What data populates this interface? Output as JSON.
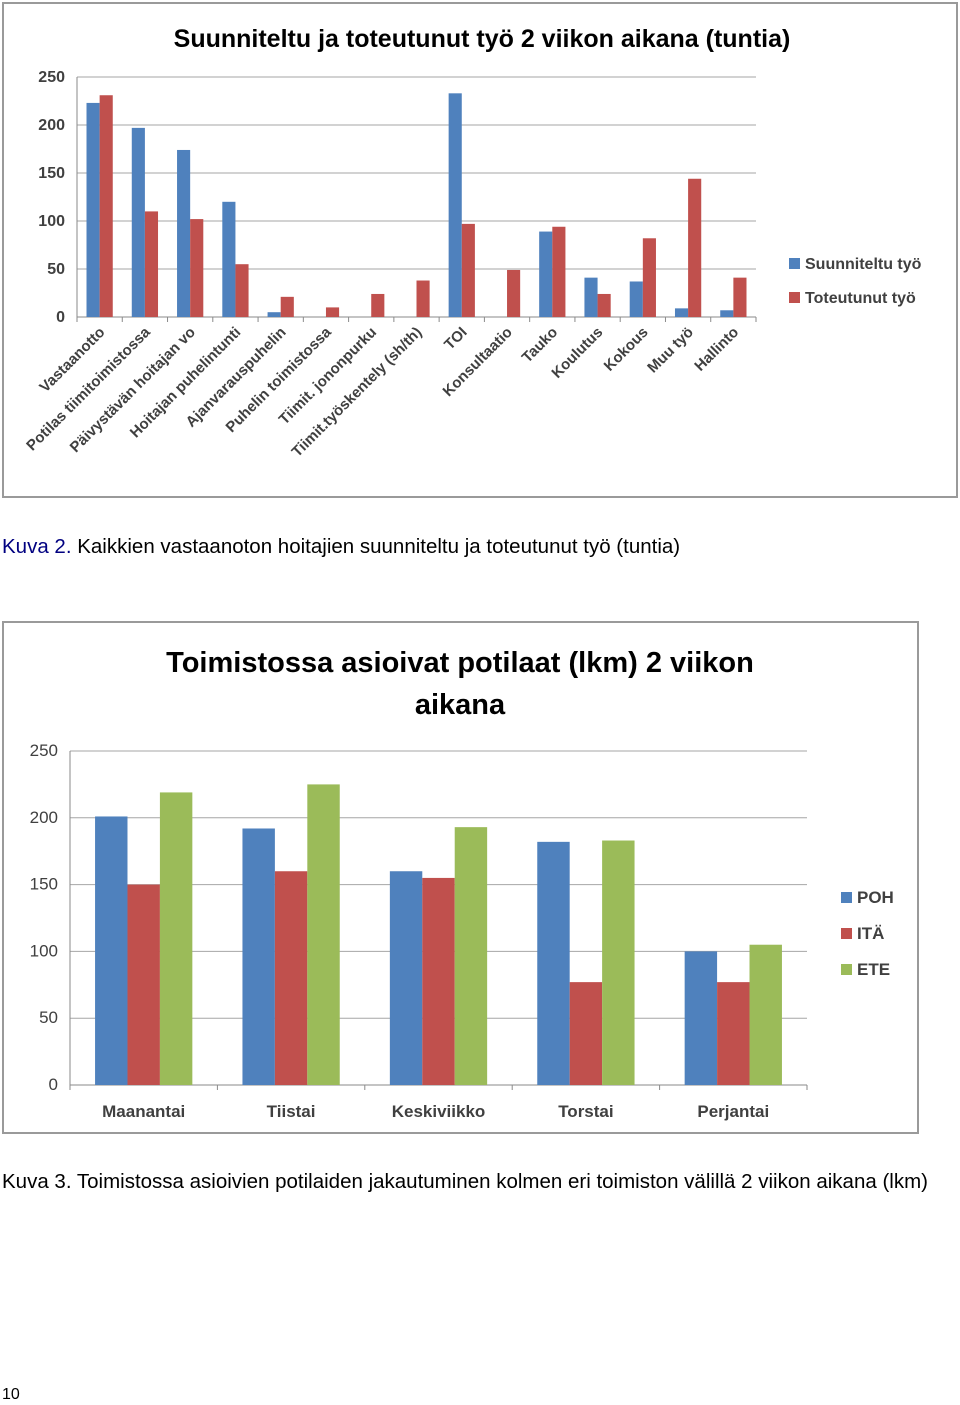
{
  "captions": {
    "figure2_label": "Kuva 2.",
    "figure2_text": "Kaikkien vastaanoton hoitajien suunniteltu ja toteutunut työ (tuntia)",
    "figure3_label": "Kuva 3.",
    "figure3_text": "Toimistossa asioivien potilaiden jakautuminen kolmen eri toimiston välillä 2 viikon aikana (lkm)"
  },
  "page_number": "10",
  "chart_data": [
    {
      "type": "bar",
      "title": "Suunniteltu ja toteutunut työ 2 viikon aikana (tuntia)",
      "categories": [
        "Vastaanotto",
        "Potilas tiimitoimistossa",
        "Päivystävän hoitajan vo",
        "Hoitajan puhelintunti",
        "Ajanvarauspuhelin",
        "Puhelin toimistossa",
        "Tiimit. jononpurku",
        "Tiimit.työskentely (sh/th)",
        "TOI",
        "Konsultaatio",
        "Tauko",
        "Koulutus",
        "Kokous",
        "Muu työ",
        "Hallinto"
      ],
      "series": [
        {
          "name": "Suunniteltu työ",
          "color": "#4f81bd",
          "values": [
            223,
            197,
            174,
            120,
            5,
            0,
            0,
            0,
            233,
            0,
            89,
            41,
            37,
            9,
            7
          ]
        },
        {
          "name": "Toteutunut työ",
          "color": "#c0504d",
          "values": [
            231,
            110,
            102,
            55,
            21,
            10,
            24,
            38,
            97,
            49,
            94,
            24,
            82,
            144,
            41
          ]
        }
      ],
      "yticks": [
        "0",
        "50",
        "100",
        "150",
        "200",
        "250"
      ],
      "ylim": [
        0,
        250
      ],
      "grid": true,
      "legend": "right"
    },
    {
      "type": "bar",
      "title": "Toimistossa asioivat potilaat (lkm) 2 viikon aikana",
      "categories": [
        "Maanantai",
        "Tiistai",
        "Keskiviikko",
        "Torstai",
        "Perjantai"
      ],
      "series": [
        {
          "name": "POH",
          "color": "#4f81bd",
          "values": [
            201,
            192,
            160,
            182,
            100
          ]
        },
        {
          "name": "ITÄ",
          "color": "#c0504d",
          "values": [
            150,
            160,
            155,
            77,
            77
          ]
        },
        {
          "name": "ETE",
          "color": "#9bbb59",
          "values": [
            219,
            225,
            193,
            183,
            105
          ]
        }
      ],
      "yticks": [
        "0",
        "50",
        "100",
        "150",
        "200",
        "250"
      ],
      "ylim": [
        0,
        250
      ],
      "grid": true,
      "legend": "right"
    }
  ]
}
